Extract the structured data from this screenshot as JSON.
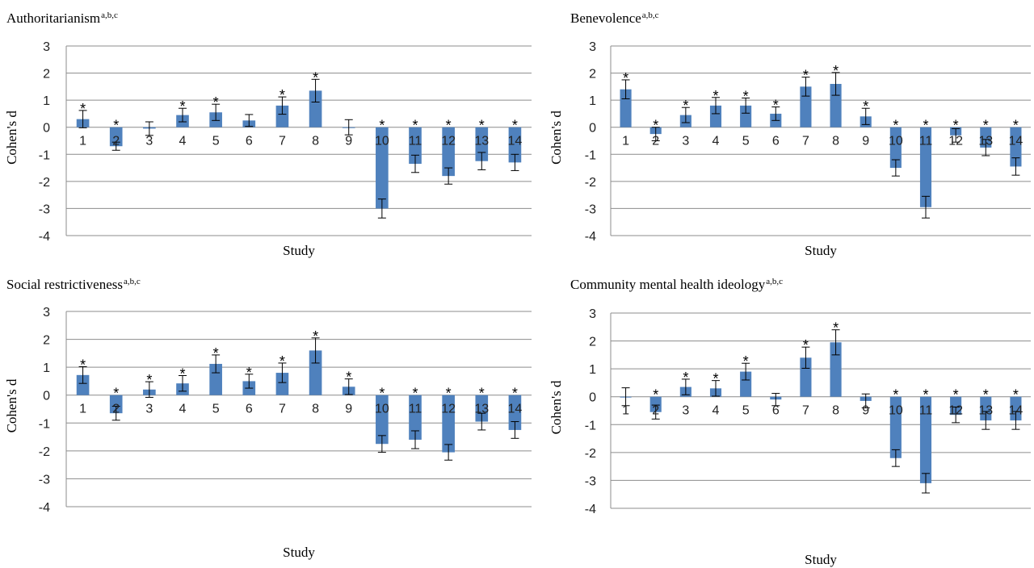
{
  "chart_data": [
    {
      "type": "bar",
      "title": "Authoritarianism",
      "title_superscript": "a,b,c",
      "xlabel": "Study",
      "ylabel": "Cohen's d",
      "ylim": [
        -4,
        3
      ],
      "yticks": [
        3,
        2,
        1,
        0,
        -1,
        -2,
        -3,
        -4
      ],
      "categories": [
        "1",
        "2",
        "3",
        "4",
        "5",
        "6",
        "7",
        "8",
        "9",
        "10",
        "11",
        "12",
        "13",
        "14"
      ],
      "values": [
        0.3,
        -0.7,
        -0.05,
        0.45,
        0.55,
        0.25,
        0.8,
        1.35,
        0.0,
        -3.0,
        -1.35,
        -1.8,
        -1.25,
        -1.3
      ],
      "error": [
        0.32,
        0.15,
        0.25,
        0.25,
        0.3,
        0.22,
        0.32,
        0.42,
        0.28,
        0.35,
        0.32,
        0.3,
        0.32,
        0.3
      ],
      "significant": [
        true,
        true,
        false,
        true,
        true,
        false,
        true,
        true,
        false,
        true,
        true,
        true,
        true,
        true
      ],
      "annotation": "*",
      "color": "#4f81bd",
      "grid": true
    },
    {
      "type": "bar",
      "title": "Benevolence",
      "title_superscript": "a,b,c",
      "xlabel": "Study",
      "ylabel": "Cohen's d",
      "ylim": [
        -4,
        3
      ],
      "yticks": [
        3,
        2,
        1,
        0,
        -1,
        -2,
        -3,
        -4
      ],
      "categories": [
        "1",
        "2",
        "3",
        "4",
        "5",
        "6",
        "7",
        "8",
        "9",
        "10",
        "11",
        "12",
        "13",
        "14"
      ],
      "values": [
        1.4,
        -0.25,
        0.45,
        0.8,
        0.8,
        0.5,
        1.5,
        1.6,
        0.4,
        -1.5,
        -2.95,
        -0.3,
        -0.75,
        -1.45
      ],
      "error": [
        0.35,
        0.25,
        0.28,
        0.3,
        0.28,
        0.25,
        0.35,
        0.42,
        0.3,
        0.3,
        0.4,
        0.25,
        0.3,
        0.32
      ],
      "significant": [
        true,
        true,
        true,
        true,
        true,
        true,
        true,
        true,
        true,
        true,
        true,
        true,
        true,
        true
      ],
      "annotation": "*",
      "color": "#4f81bd",
      "grid": true
    },
    {
      "type": "bar",
      "title": "Social restrictiveness",
      "title_superscript": "a,b,c",
      "xlabel": "Study",
      "ylabel": "Cohen's d",
      "ylim": [
        -4,
        3
      ],
      "yticks": [
        3,
        2,
        1,
        0,
        -1,
        -2,
        -3,
        -4
      ],
      "categories": [
        "1",
        "2",
        "3",
        "4",
        "5",
        "6",
        "7",
        "8",
        "9",
        "10",
        "11",
        "12",
        "13",
        "14"
      ],
      "values": [
        0.72,
        -0.65,
        0.2,
        0.42,
        1.12,
        0.5,
        0.8,
        1.6,
        0.3,
        -1.75,
        -1.6,
        -2.05,
        -0.95,
        -1.25
      ],
      "error": [
        0.3,
        0.25,
        0.28,
        0.28,
        0.32,
        0.25,
        0.35,
        0.45,
        0.28,
        0.3,
        0.32,
        0.28,
        0.3,
        0.3
      ],
      "significant": [
        true,
        true,
        true,
        true,
        true,
        true,
        true,
        true,
        true,
        true,
        true,
        true,
        true,
        true
      ],
      "annotation": "*",
      "color": "#4f81bd",
      "grid": true
    },
    {
      "type": "bar",
      "title": "Community mental health ideology",
      "title_superscript": "a,b,c",
      "xlabel": "Study",
      "ylabel": "Cohen's d",
      "ylim": [
        -4,
        3
      ],
      "yticks": [
        3,
        2,
        1,
        0,
        -1,
        -2,
        -3,
        -4
      ],
      "categories": [
        "1",
        "2",
        "3",
        "4",
        "5",
        "6",
        "7",
        "8",
        "9",
        "10",
        "11",
        "12",
        "13",
        "14"
      ],
      "values": [
        0.0,
        -0.55,
        0.35,
        0.3,
        0.9,
        -0.1,
        1.4,
        1.95,
        -0.15,
        -2.2,
        -3.1,
        -0.65,
        -0.85,
        -0.85
      ],
      "error": [
        0.32,
        0.25,
        0.28,
        0.28,
        0.3,
        0.22,
        0.38,
        0.45,
        0.25,
        0.3,
        0.35,
        0.28,
        0.32,
        0.32
      ],
      "significant": [
        false,
        true,
        true,
        true,
        true,
        false,
        true,
        true,
        false,
        true,
        true,
        true,
        true,
        true
      ],
      "annotation": "*",
      "color": "#4f81bd",
      "grid": true
    }
  ]
}
